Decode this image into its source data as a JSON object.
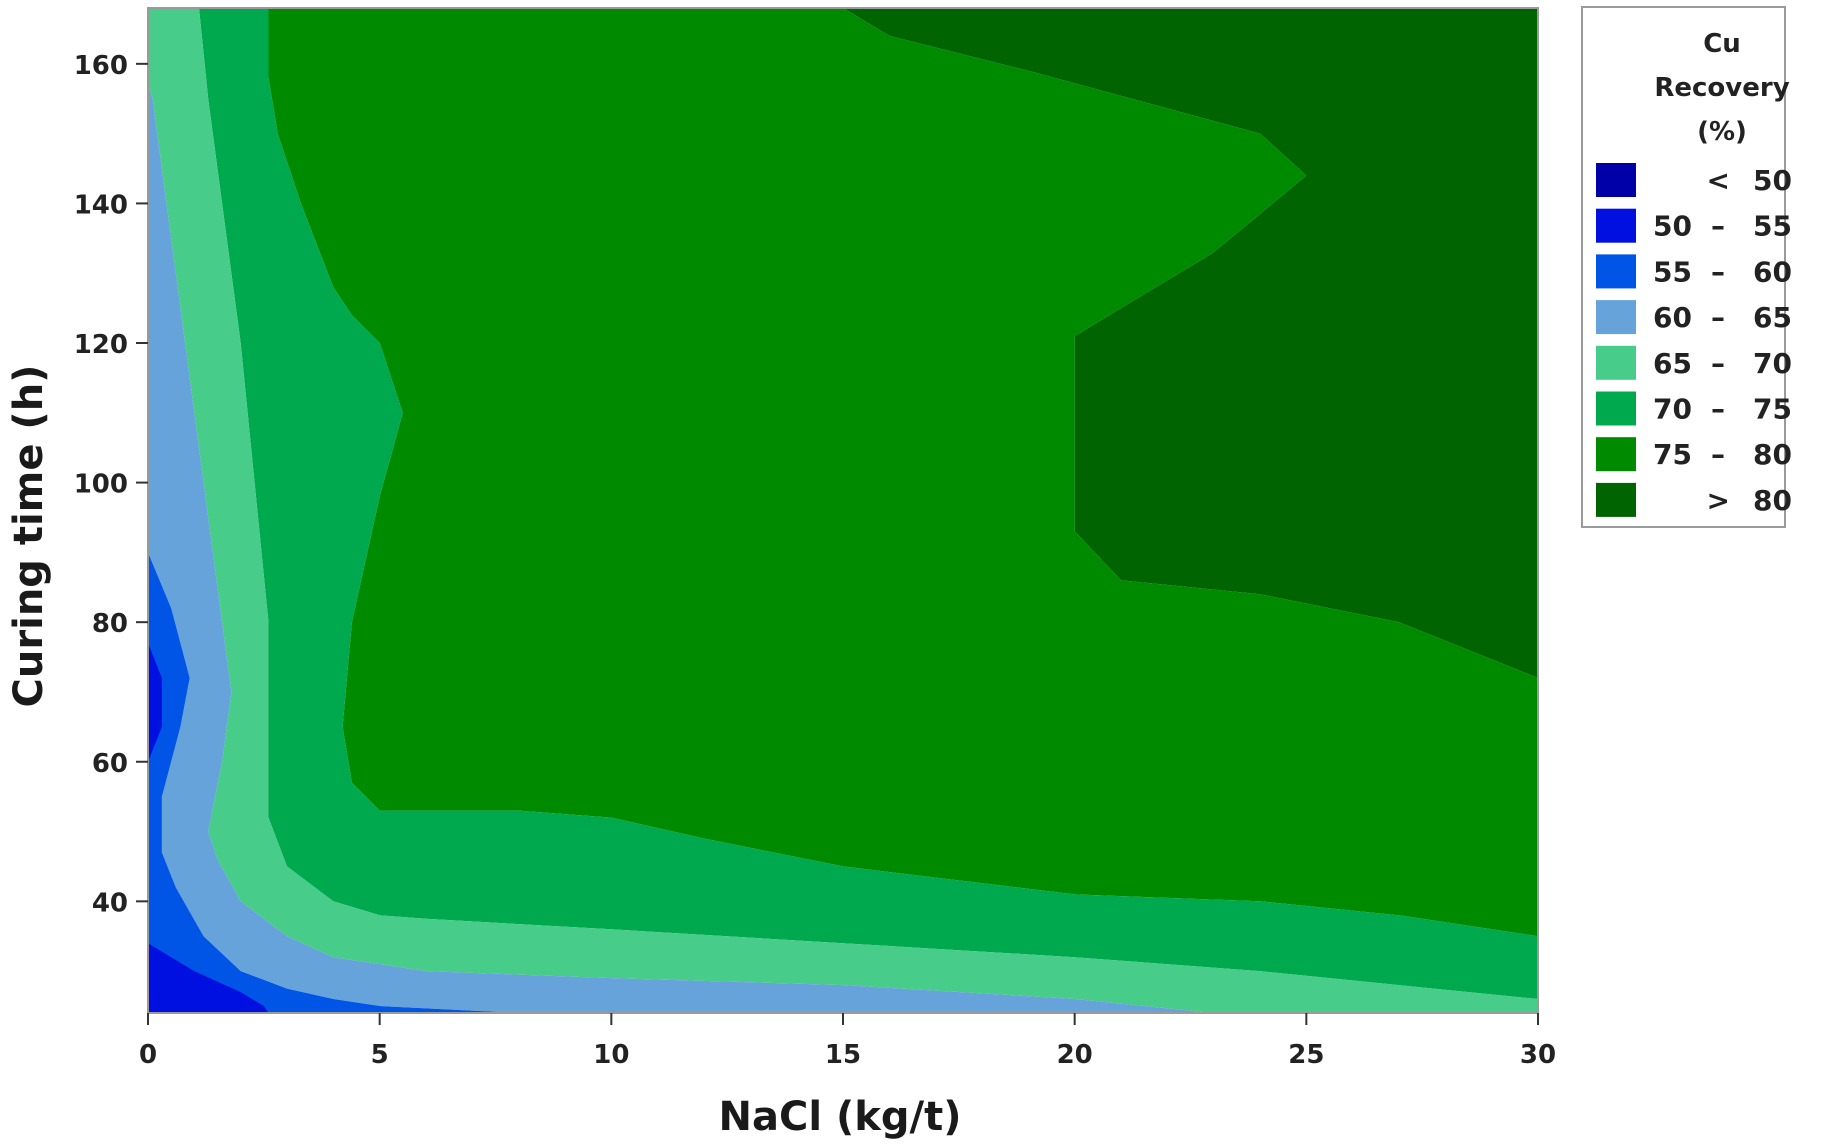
{
  "chart_data": {
    "type": "contour",
    "xlabel": "NaCl (kg/t)",
    "ylabel": "Curing time (h)",
    "xlim": [
      0,
      30
    ],
    "ylim": [
      24,
      168
    ],
    "xticks": [
      0,
      5,
      10,
      15,
      20,
      25,
      30
    ],
    "yticks": [
      40,
      60,
      80,
      100,
      120,
      140,
      160
    ],
    "legend": {
      "placement": "right",
      "title_lines": [
        "Cu",
        "Recovery",
        "(%)"
      ],
      "levels": [
        {
          "lo": "<",
          "hi": "50",
          "color": "#0000A8"
        },
        {
          "lo": "50",
          "sep": "–",
          "hi": "55",
          "color": "#0010E0"
        },
        {
          "lo": "55",
          "sep": "–",
          "hi": "60",
          "color": "#0055E6"
        },
        {
          "lo": "60",
          "sep": "–",
          "hi": "65",
          "color": "#66A3DB"
        },
        {
          "lo": "65",
          "sep": "–",
          "hi": "70",
          "color": "#48CC8A"
        },
        {
          "lo": "70",
          "sep": "–",
          "hi": "75",
          "color": "#00A84E"
        },
        {
          "lo": "75",
          "sep": "–",
          "hi": "80",
          "color": "#008A00"
        },
        {
          "lo": ">",
          "hi": "80",
          "color": "#006400"
        }
      ]
    },
    "bands": [
      {
        "level": ">80",
        "color": "#006400",
        "points": [
          [
            15,
            168
          ],
          [
            30,
            168
          ],
          [
            30,
            72
          ],
          [
            27,
            80
          ],
          [
            24,
            84
          ],
          [
            21,
            86
          ],
          [
            20,
            93
          ],
          [
            20,
            110
          ],
          [
            20,
            121
          ],
          [
            23,
            133
          ],
          [
            25,
            144
          ],
          [
            24,
            150
          ],
          [
            19,
            159
          ],
          [
            16,
            164
          ]
        ]
      },
      {
        "level": "75-80",
        "color": "#008A00",
        "points": [
          [
            2.6,
            168
          ],
          [
            15,
            168
          ],
          [
            16,
            164
          ],
          [
            19,
            159
          ],
          [
            24,
            150
          ],
          [
            25,
            144
          ],
          [
            23,
            133
          ],
          [
            20,
            121
          ],
          [
            20,
            110
          ],
          [
            20,
            93
          ],
          [
            21,
            86
          ],
          [
            24,
            84
          ],
          [
            27,
            80
          ],
          [
            30,
            72
          ],
          [
            30,
            35
          ],
          [
            27,
            38
          ],
          [
            24,
            40
          ],
          [
            20,
            41
          ],
          [
            15,
            45
          ],
          [
            12,
            49
          ],
          [
            10,
            52
          ],
          [
            8,
            53
          ],
          [
            5,
            53
          ],
          [
            4.4,
            57
          ],
          [
            4.2,
            65
          ],
          [
            4.4,
            80
          ],
          [
            5,
            98
          ],
          [
            5.5,
            110
          ],
          [
            5,
            120
          ],
          [
            4.4,
            124
          ],
          [
            4,
            128
          ],
          [
            3.3,
            140
          ],
          [
            2.8,
            150
          ],
          [
            2.6,
            158
          ]
        ]
      },
      {
        "level": "70-75",
        "color": "#00A84E",
        "points": [
          [
            1.1,
            168
          ],
          [
            2.6,
            168
          ],
          [
            2.6,
            158
          ],
          [
            2.8,
            150
          ],
          [
            3.3,
            140
          ],
          [
            4,
            128
          ],
          [
            4.4,
            124
          ],
          [
            5,
            120
          ],
          [
            5.5,
            110
          ],
          [
            5,
            98
          ],
          [
            4.4,
            80
          ],
          [
            4.2,
            65
          ],
          [
            4.4,
            57
          ],
          [
            5,
            53
          ],
          [
            8,
            53
          ],
          [
            10,
            52
          ],
          [
            12,
            49
          ],
          [
            15,
            45
          ],
          [
            20,
            41
          ],
          [
            24,
            40
          ],
          [
            27,
            38
          ],
          [
            30,
            35
          ],
          [
            30,
            26
          ],
          [
            27,
            28
          ],
          [
            24,
            30
          ],
          [
            20,
            32
          ],
          [
            15,
            34
          ],
          [
            10,
            36
          ],
          [
            6,
            37.5
          ],
          [
            5,
            38
          ],
          [
            4,
            40
          ],
          [
            3,
            45
          ],
          [
            2.6,
            52
          ],
          [
            2.6,
            65
          ],
          [
            2.6,
            80
          ],
          [
            2.3,
            100
          ],
          [
            2,
            120
          ],
          [
            1.6,
            140
          ],
          [
            1.3,
            155
          ]
        ]
      },
      {
        "level": "65-70",
        "color": "#48CC8A",
        "points": [
          [
            0,
            168
          ],
          [
            1.1,
            168
          ],
          [
            1.3,
            155
          ],
          [
            1.6,
            140
          ],
          [
            2,
            120
          ],
          [
            2.3,
            100
          ],
          [
            2.6,
            80
          ],
          [
            2.6,
            65
          ],
          [
            2.6,
            52
          ],
          [
            3,
            45
          ],
          [
            4,
            40
          ],
          [
            5,
            38
          ],
          [
            6,
            37.5
          ],
          [
            10,
            36
          ],
          [
            15,
            34
          ],
          [
            20,
            32
          ],
          [
            24,
            30
          ],
          [
            27,
            28
          ],
          [
            30,
            26
          ],
          [
            30,
            24
          ],
          [
            23,
            24
          ],
          [
            20,
            26
          ],
          [
            15,
            28
          ],
          [
            10,
            29
          ],
          [
            6,
            30
          ],
          [
            4,
            32
          ],
          [
            3,
            35
          ],
          [
            2,
            40
          ],
          [
            1.5,
            46
          ],
          [
            1.3,
            50
          ],
          [
            1.6,
            60
          ],
          [
            1.8,
            70
          ],
          [
            1.6,
            80
          ],
          [
            1.2,
            100
          ],
          [
            0.8,
            120
          ],
          [
            0.4,
            140
          ],
          [
            0.1,
            155
          ],
          [
            0,
            157
          ]
        ]
      },
      {
        "level": "60-65",
        "color": "#66A3DB",
        "points": [
          [
            0,
            157
          ],
          [
            0.1,
            155
          ],
          [
            0.4,
            140
          ],
          [
            0.8,
            120
          ],
          [
            1.2,
            100
          ],
          [
            1.6,
            80
          ],
          [
            1.8,
            70
          ],
          [
            1.6,
            60
          ],
          [
            1.3,
            50
          ],
          [
            1.5,
            46
          ],
          [
            2,
            40
          ],
          [
            3,
            35
          ],
          [
            4,
            32
          ],
          [
            6,
            30
          ],
          [
            10,
            29
          ],
          [
            15,
            28
          ],
          [
            20,
            26
          ],
          [
            23,
            24
          ],
          [
            8,
            24
          ],
          [
            5,
            25
          ],
          [
            4,
            26
          ],
          [
            3,
            27.5
          ],
          [
            2,
            30
          ],
          [
            1.2,
            35
          ],
          [
            0.6,
            42
          ],
          [
            0.3,
            47
          ],
          [
            0.3,
            55
          ],
          [
            0.7,
            65
          ],
          [
            0.9,
            72
          ],
          [
            0.5,
            82
          ],
          [
            0,
            90
          ]
        ]
      },
      {
        "level": "55-60",
        "color": "#0055E6",
        "points": [
          [
            0,
            90
          ],
          [
            0.5,
            82
          ],
          [
            0.9,
            72
          ],
          [
            0.7,
            65
          ],
          [
            0.3,
            55
          ],
          [
            0.3,
            47
          ],
          [
            0.6,
            42
          ],
          [
            1.2,
            35
          ],
          [
            2,
            30
          ],
          [
            3,
            27.5
          ],
          [
            4,
            26
          ],
          [
            5,
            25
          ],
          [
            8,
            24
          ],
          [
            0,
            24
          ]
        ]
      },
      {
        "level": "50-55",
        "color": "#0010E0",
        "points": [
          [
            0,
            77
          ],
          [
            0.3,
            72
          ],
          [
            0.3,
            65
          ],
          [
            0,
            60
          ]
        ]
      },
      {
        "level": "50-55",
        "color": "#0010E0",
        "points": [
          [
            0,
            34
          ],
          [
            1,
            30
          ],
          [
            2,
            27
          ],
          [
            2.5,
            25
          ],
          [
            2.6,
            24
          ],
          [
            0,
            24
          ]
        ]
      }
    ]
  }
}
